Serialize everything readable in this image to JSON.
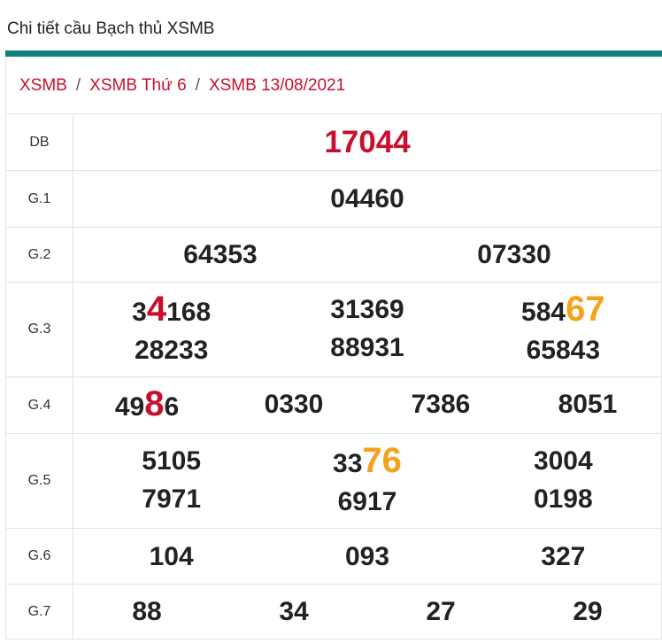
{
  "header": {
    "title": "Chi tiết cầu Bạch thủ XSMB"
  },
  "breadcrumb": {
    "items": [
      "XSMB",
      "XSMB Thứ 6",
      "XSMB 13/08/2021"
    ],
    "separator": "/"
  },
  "table": {
    "rows": [
      {
        "label": "DB",
        "color": "#c8102e",
        "height": 64,
        "cells": [
          [
            "17044"
          ]
        ]
      },
      {
        "label": "G.1",
        "height": 64,
        "cells": [
          [
            "04460"
          ]
        ]
      },
      {
        "label": "G.2",
        "height": 62,
        "cells": [
          [
            "64353"
          ],
          [
            "07330"
          ]
        ]
      },
      {
        "label": "G.3",
        "height": 107,
        "cells": [
          [
            {
              "parts": [
                "3",
                "4",
                "168"
              ],
              "highlight": 1,
              "color": "#c8102e"
            },
            "28233"
          ],
          [
            "31369",
            "88931"
          ],
          [
            {
              "parts": [
                "584",
                "67"
              ],
              "highlight": 1,
              "color": "#f5a11c"
            },
            "65843"
          ]
        ]
      },
      {
        "label": "G.4",
        "height": 64,
        "cells": [
          [
            {
              "parts": [
                "49",
                "8",
                "6"
              ],
              "highlight": 1,
              "color": "#c8102e"
            }
          ],
          [
            "0330"
          ],
          [
            "7386"
          ],
          [
            "8051"
          ]
        ]
      },
      {
        "label": "G.5",
        "height": 107,
        "cells": [
          [
            "5105",
            "7971"
          ],
          [
            {
              "parts": [
                "33",
                "76"
              ],
              "highlight": 1,
              "color": "#f5a11c"
            },
            "6917"
          ],
          [
            "3004",
            "0198"
          ]
        ]
      },
      {
        "label": "G.6",
        "height": 63,
        "cells": [
          [
            "104"
          ],
          [
            "093"
          ],
          [
            "327"
          ]
        ]
      },
      {
        "label": "G.7",
        "height": 62,
        "cells": [
          [
            "88"
          ],
          [
            "34"
          ],
          [
            "27"
          ],
          [
            "29"
          ]
        ]
      }
    ]
  }
}
